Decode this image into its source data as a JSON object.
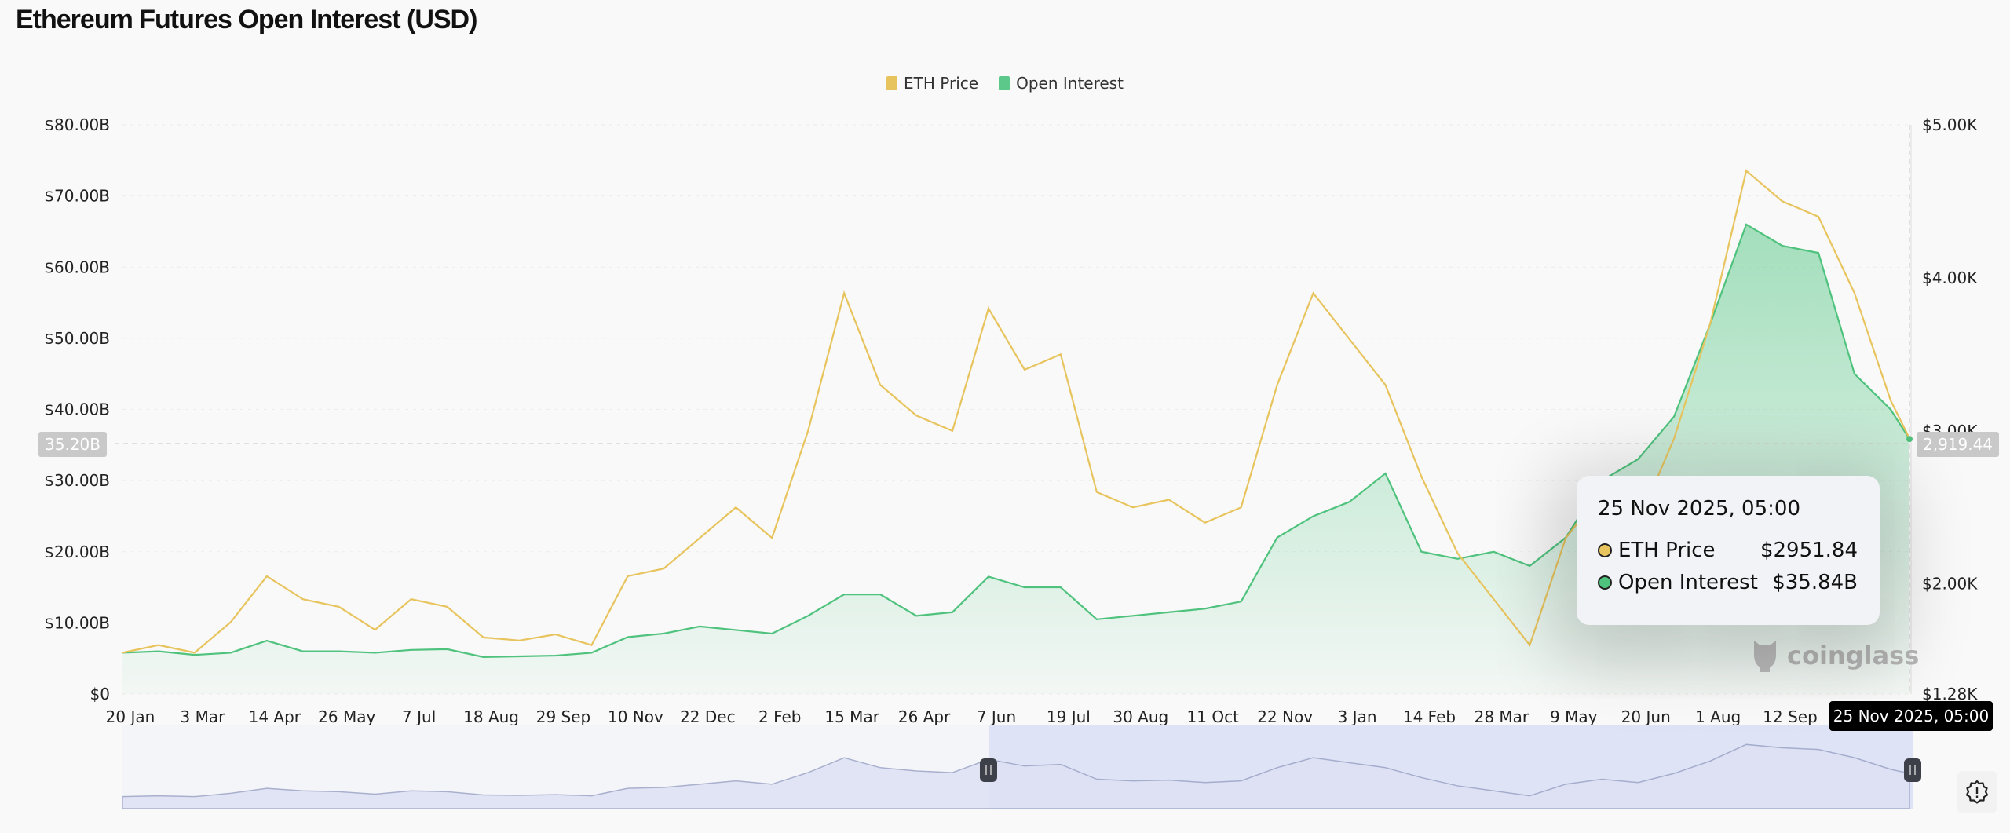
{
  "header": {
    "title": "Ethereum Futures Open Interest (USD)"
  },
  "chart_data": {
    "type": "line",
    "title": "Ethereum Futures Open Interest (USD)",
    "legend": {
      "placement": "top-center",
      "entries": [
        "ETH Price",
        "Open Interest"
      ]
    },
    "grid": true,
    "y_left": {
      "ylim": [
        0,
        80
      ],
      "unit": "B",
      "ticks": [
        "$0",
        "$10.00B",
        "$20.00B",
        "$30.00B",
        "$40.00B",
        "$50.00B",
        "$60.00B",
        "$70.00B",
        "$80.00B"
      ]
    },
    "y_right": {
      "ylim": [
        1.28,
        5.0
      ],
      "unit": "K",
      "ticks": [
        "$1.28K",
        "$2.00K",
        "$3.00K",
        "$4.00K",
        "$5.00K"
      ],
      "tick_values": [
        1.28,
        2,
        3,
        4,
        5
      ]
    },
    "x_ticks": [
      "20 Jan",
      "3 Mar",
      "14 Apr",
      "26 May",
      "7 Jul",
      "18 Aug",
      "29 Sep",
      "10 Nov",
      "22 Dec",
      "2 Feb",
      "15 Mar",
      "26 Apr",
      "7 Jun",
      "19 Jul",
      "30 Aug",
      "11 Oct",
      "22 Nov",
      "3 Jan",
      "14 Feb",
      "28 Mar",
      "9 May",
      "20 Jun",
      "1 Aug",
      "12 Sep"
    ],
    "x_range": [
      "2023-01-20",
      "2025-11-25"
    ],
    "x": [
      "2023-01-20",
      "2023-02-10",
      "2023-03-03",
      "2023-03-24",
      "2023-04-14",
      "2023-05-05",
      "2023-05-26",
      "2023-06-16",
      "2023-07-07",
      "2023-07-28",
      "2023-08-18",
      "2023-09-08",
      "2023-09-29",
      "2023-10-20",
      "2023-11-10",
      "2023-12-01",
      "2023-12-22",
      "2024-01-12",
      "2024-02-02",
      "2024-02-23",
      "2024-03-15",
      "2024-04-05",
      "2024-04-26",
      "2024-05-17",
      "2024-06-07",
      "2024-06-28",
      "2024-07-19",
      "2024-08-09",
      "2024-08-30",
      "2024-09-20",
      "2024-10-11",
      "2024-11-01",
      "2024-11-22",
      "2024-12-13",
      "2025-01-03",
      "2025-01-24",
      "2025-02-14",
      "2025-03-07",
      "2025-03-28",
      "2025-04-18",
      "2025-05-09",
      "2025-05-30",
      "2025-06-20",
      "2025-07-11",
      "2025-08-01",
      "2025-08-22",
      "2025-09-12",
      "2025-10-03",
      "2025-10-24",
      "2025-11-14",
      "2025-11-25"
    ],
    "series": [
      {
        "name": "ETH Price",
        "axis": "right",
        "unit": "K USD",
        "color": "#e8c45e",
        "values": [
          1.55,
          1.6,
          1.55,
          1.75,
          2.05,
          1.9,
          1.85,
          1.7,
          1.9,
          1.85,
          1.65,
          1.63,
          1.67,
          1.6,
          2.05,
          2.1,
          2.3,
          2.5,
          2.3,
          3.0,
          3.9,
          3.3,
          3.1,
          3.0,
          3.8,
          3.4,
          3.5,
          2.6,
          2.5,
          2.55,
          2.4,
          2.5,
          3.3,
          3.9,
          3.6,
          3.3,
          2.7,
          2.2,
          1.9,
          1.6,
          2.3,
          2.6,
          2.4,
          2.95,
          3.7,
          4.7,
          4.5,
          4.4,
          3.9,
          3.2,
          2.95
        ]
      },
      {
        "name": "Open Interest",
        "axis": "left",
        "unit": "B USD",
        "color": "#4fc27d",
        "values": [
          5.8,
          6.0,
          5.5,
          5.8,
          7.5,
          6.0,
          6.0,
          5.8,
          6.2,
          6.3,
          5.2,
          5.3,
          5.4,
          5.8,
          8.0,
          8.5,
          9.5,
          9.0,
          8.5,
          11.0,
          14.0,
          14.0,
          11.0,
          11.5,
          16.5,
          15.0,
          15.0,
          10.5,
          11.0,
          11.5,
          12.0,
          13.0,
          22.0,
          25.0,
          27.0,
          31.0,
          20.0,
          19.0,
          20.0,
          18.0,
          22.0,
          30.0,
          33.0,
          39.0,
          52.0,
          66.0,
          63.0,
          62.0,
          45.0,
          40.0,
          35.84
        ]
      }
    ],
    "crosshair": {
      "left_value": "35.20B",
      "right_value": "2,919.44",
      "date_label": "25 Nov 2025, 05:00"
    },
    "navigator": {
      "selected_range": [
        "2024-06-07",
        "2025-11-25"
      ]
    }
  },
  "tooltip": {
    "title": "25 Nov 2025, 05:00",
    "rows": [
      {
        "label": "ETH Price",
        "value": "$2951.84",
        "color": "#e8c45e"
      },
      {
        "label": "Open Interest",
        "value": "$35.84B",
        "color": "#4fc27d"
      }
    ]
  },
  "watermark": "coinglass",
  "icons": {
    "settings": "alert-badge-icon"
  }
}
